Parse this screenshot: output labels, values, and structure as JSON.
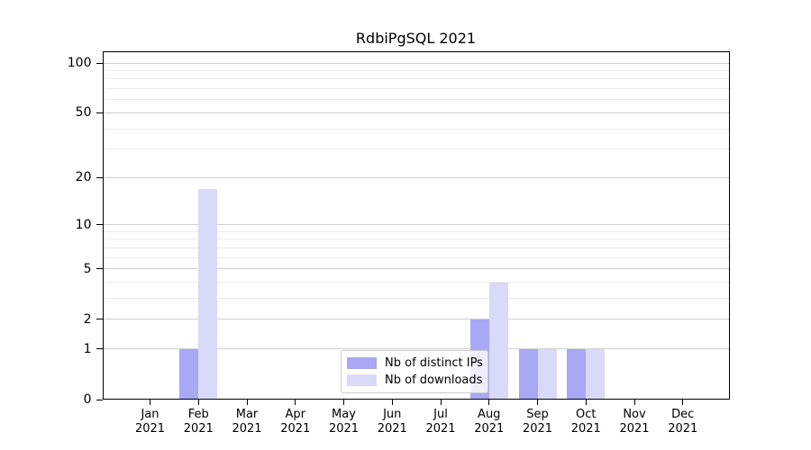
{
  "title": "RdbiPgSQL 2021",
  "chart_data": {
    "type": "bar",
    "title": "RdbiPgSQL 2021",
    "categories": [
      "Jan",
      "Feb",
      "Mar",
      "Apr",
      "May",
      "Jun",
      "Jul",
      "Aug",
      "Sep",
      "Oct",
      "Nov",
      "Dec"
    ],
    "year": "2021",
    "series": [
      {
        "name": "Nb of distinct IPs",
        "color": "#a8a8f4",
        "values": [
          0,
          1,
          0,
          0,
          0,
          0,
          0,
          2,
          1,
          1,
          0,
          0
        ]
      },
      {
        "name": "Nb of downloads",
        "color": "#d9d9f9",
        "values": [
          0,
          17,
          0,
          0,
          0,
          0,
          0,
          4,
          1,
          1,
          0,
          0
        ]
      }
    ],
    "y_axis": {
      "scale": "log10(1+v)",
      "labeled_ticks": [
        0,
        1,
        2,
        5,
        10,
        20,
        50,
        100
      ],
      "minor_gridlines": [
        3,
        4,
        6,
        7,
        8,
        9,
        30,
        40,
        60,
        70,
        80,
        90
      ],
      "range": [
        0,
        100
      ]
    },
    "x_axis": {
      "tick_label_lines": 2
    },
    "legend": {
      "position": "lower center inside",
      "entries": [
        "Nb of distinct IPs",
        "Nb of downloads"
      ]
    },
    "grid": true
  },
  "colors": {
    "major_gridline": "#d0d0d0",
    "minor_gridline": "#ebebeb",
    "axis": "#000000",
    "tick_text": "#000000",
    "legend_border": "#cccccc",
    "legend_background": "rgba(255,255,255,0.8)"
  }
}
